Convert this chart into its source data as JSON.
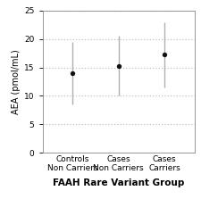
{
  "groups": [
    "Controls\nNon Carriers",
    "Cases\nNon Carriers",
    "Cases\nCarriers"
  ],
  "means": [
    14.0,
    15.2,
    17.3
  ],
  "lower": [
    8.5,
    10.0,
    11.5
  ],
  "upper": [
    19.5,
    20.5,
    23.0
  ],
  "xlabel": "FAAH Rare Variant Group",
  "ylabel": "AEA (pmol/mL)",
  "ylim": [
    0,
    25
  ],
  "yticks": [
    0,
    5,
    10,
    15,
    20,
    25
  ],
  "background_color": "#ffffff",
  "point_color": "#111111",
  "errorbar_color": "#b0b0b0",
  "gridline_color": "#c0c0c0",
  "xlabel_fontsize": 7.5,
  "ylabel_fontsize": 7,
  "tick_fontsize": 6.5,
  "x_positions": [
    1,
    2,
    3
  ]
}
